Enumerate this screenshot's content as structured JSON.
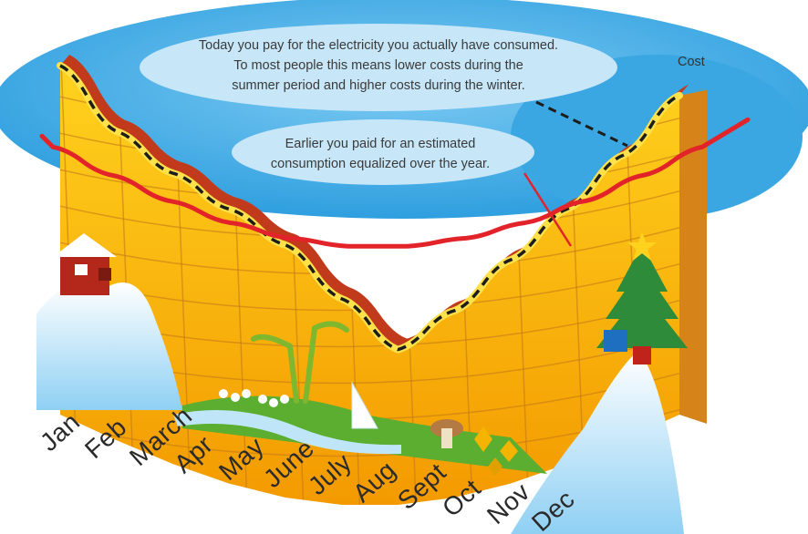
{
  "chart_data": {
    "type": "area",
    "categories": [
      "Jan",
      "Feb",
      "March",
      "Apr",
      "May",
      "June",
      "July",
      "Aug",
      "Sept",
      "Oct",
      "Nov",
      "Dec"
    ],
    "series": [
      {
        "values": [
          100,
          78,
          64,
          52,
          40,
          22,
          5,
          18,
          35,
          52,
          70,
          90
        ]
      },
      {
        "values": [
          56,
          56,
          56,
          56,
          56,
          56,
          56,
          56,
          56,
          56,
          56,
          56
        ]
      }
    ],
    "ylabel": "Cost",
    "annotations": [
      "Today you pay for the electricity you actually have consumed.",
      "To most people this means lower costs during the",
      "summer period and higher costs during the winter.",
      "Earlier you paid for an estimated",
      "consumption equalized over the year."
    ],
    "colors": {
      "sky": "#3fa9e4",
      "panel": "#f6b800",
      "panel_edge": "#c23a1c",
      "grid": "#c47a18",
      "equalized_line": "#e3232a",
      "dashed_line": "#1d1d1b",
      "bubble": "#bfe3f7"
    }
  }
}
